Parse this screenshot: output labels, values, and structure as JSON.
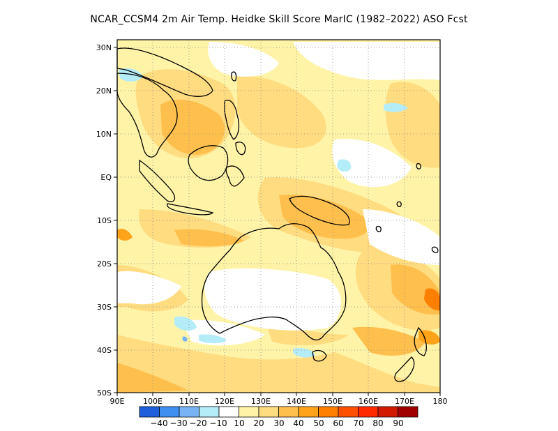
{
  "title": "NCAR_CCSM4  2m Air Temp. Heidke Skill Score MarIC (1982–2022) ASO Fcst",
  "lat_labels": [
    "30N",
    "20N",
    "10N",
    "EQ",
    "10S",
    "20S",
    "30S",
    "40S",
    "50S"
  ],
  "lon_labels": [
    "90E",
    "100E",
    "110E",
    "120E",
    "130E",
    "140E",
    "150E",
    "160E",
    "170E",
    "180"
  ],
  "colorbar": {
    "colors": [
      "#1f5fdc",
      "#3f8ff0",
      "#78b4f5",
      "#b4ecf8",
      "#ffffff",
      "#fff3a8",
      "#ffdc80",
      "#ffbf4d",
      "#ffa31a",
      "#ff7f00",
      "#ff4f00",
      "#ff2a00",
      "#d21a00",
      "#a00000"
    ],
    "labels": [
      "−40",
      "−30",
      "−20",
      "−10",
      "10",
      "20",
      "30",
      "40",
      "50",
      "60",
      "70",
      "80",
      "90"
    ]
  },
  "fields": {
    "domain": {
      "lon_min": 90,
      "lon_max": 180,
      "lat_min": -50,
      "lat_max": 32
    }
  }
}
